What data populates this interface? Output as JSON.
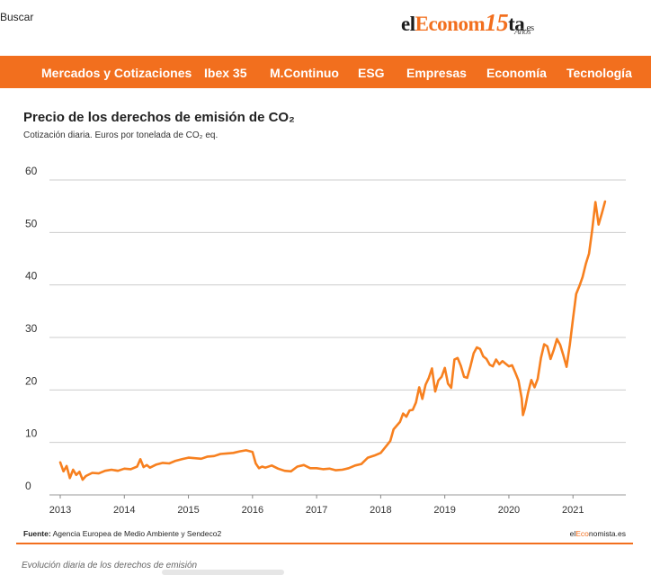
{
  "header": {
    "search_label": "Buscar",
    "logo": {
      "part1": "el",
      "part2": "Econom",
      "part3": "15",
      "part4": "ta",
      "part5": ".es",
      "part6": "Años"
    }
  },
  "nav": {
    "items": [
      "Mercados y Cotizaciones",
      "Ibex 35",
      "M.Continuo",
      "ESG",
      "Empresas",
      "Economía",
      "Tecnología"
    ]
  },
  "footer": {
    "source_label": "Fuente:",
    "source_text": "Agencia Europea de Medio Ambiente y Sendeco2",
    "brand": {
      "part1": "el",
      "part2": "Eco",
      "part3": "nomista.es"
    },
    "caption": "Evolución diaria de los derechos de emisión"
  },
  "colors": {
    "accent": "#f26f1e",
    "line": "#f7801f",
    "grid": "#cccccc"
  },
  "chart_data": {
    "type": "line",
    "title": "Precio de los derechos de emisión de CO₂",
    "subtitle": "Cotización diaria. Euros por tonelada de CO₂ eq.",
    "xlabel": "",
    "ylabel": "",
    "xlim": [
      2013,
      2021.6
    ],
    "ylim": [
      0,
      60
    ],
    "yticks": [
      0,
      10,
      20,
      30,
      40,
      50,
      60
    ],
    "xticks": [
      "2013",
      "2014",
      "2015",
      "2016",
      "2017",
      "2018",
      "2019",
      "2020",
      "2021"
    ],
    "grid": true,
    "series": [
      {
        "x": [
          2013.0,
          2013.05,
          2013.1,
          2013.15,
          2013.2,
          2013.25,
          2013.3,
          2013.35,
          2013.4,
          2013.5,
          2013.6,
          2013.7,
          2013.8,
          2013.9,
          2014.0,
          2014.1,
          2014.2,
          2014.25,
          2014.3,
          2014.35,
          2014.4,
          2014.5,
          2014.6,
          2014.7,
          2014.8,
          2014.9,
          2015.0,
          2015.1,
          2015.2,
          2015.3,
          2015.4,
          2015.5,
          2015.6,
          2015.7,
          2015.8,
          2015.9,
          2016.0,
          2016.05,
          2016.1,
          2016.15,
          2016.2,
          2016.3,
          2016.4,
          2016.5,
          2016.6,
          2016.7,
          2016.8,
          2016.9,
          2017.0,
          2017.1,
          2017.2,
          2017.3,
          2017.4,
          2017.5,
          2017.6,
          2017.7,
          2017.8,
          2017.9,
          2018.0,
          2018.1,
          2018.15,
          2018.2,
          2018.3,
          2018.35,
          2018.4,
          2018.45,
          2018.5,
          2018.55,
          2018.6,
          2018.65,
          2018.7,
          2018.75,
          2018.8,
          2018.85,
          2018.9,
          2018.95,
          2019.0,
          2019.05,
          2019.1,
          2019.15,
          2019.2,
          2019.25,
          2019.3,
          2019.35,
          2019.4,
          2019.45,
          2019.5,
          2019.55,
          2019.6,
          2019.65,
          2019.7,
          2019.75,
          2019.8,
          2019.85,
          2019.9,
          2019.95,
          2020.0,
          2020.05,
          2020.1,
          2020.15,
          2020.2,
          2020.22,
          2020.25,
          2020.3,
          2020.35,
          2020.4,
          2020.45,
          2020.5,
          2020.55,
          2020.6,
          2020.65,
          2020.7,
          2020.75,
          2020.8,
          2020.85,
          2020.9,
          2020.95,
          2021.0,
          2021.05,
          2021.1,
          2021.15,
          2021.2,
          2021.25,
          2021.3,
          2021.35,
          2021.4,
          2021.45,
          2021.5
        ],
        "y": [
          6.2,
          4.5,
          5.5,
          3.2,
          4.8,
          3.8,
          4.4,
          2.9,
          3.6,
          4.2,
          4.1,
          4.6,
          4.8,
          4.6,
          5.0,
          4.9,
          5.4,
          6.8,
          5.3,
          5.7,
          5.2,
          5.8,
          6.1,
          6.0,
          6.5,
          6.8,
          7.1,
          7.0,
          6.9,
          7.3,
          7.4,
          7.8,
          7.9,
          8.0,
          8.3,
          8.5,
          8.2,
          6.0,
          5.1,
          5.4,
          5.2,
          5.6,
          5.0,
          4.6,
          4.5,
          5.4,
          5.7,
          5.1,
          5.1,
          4.9,
          5.0,
          4.7,
          4.8,
          5.1,
          5.6,
          5.9,
          7.1,
          7.5,
          8.0,
          9.5,
          10.3,
          12.5,
          13.9,
          15.5,
          14.9,
          16.1,
          16.2,
          17.6,
          20.5,
          18.3,
          21.0,
          22.3,
          24.1,
          19.7,
          21.8,
          22.5,
          24.2,
          21.2,
          20.4,
          25.8,
          26.1,
          24.6,
          22.5,
          22.3,
          24.5,
          27.0,
          28.1,
          27.8,
          26.4,
          25.9,
          24.8,
          24.5,
          25.8,
          24.9,
          25.5,
          25.0,
          24.5,
          24.7,
          23.3,
          21.8,
          18.4,
          15.2,
          16.5,
          19.5,
          21.9,
          20.5,
          22.1,
          26.1,
          28.7,
          28.3,
          25.9,
          27.6,
          29.7,
          28.6,
          26.6,
          24.4,
          28.6,
          33.5,
          38.3,
          39.8,
          41.5,
          44.0,
          46.0,
          50.5,
          55.8,
          51.5,
          53.6,
          55.9
        ]
      }
    ]
  }
}
